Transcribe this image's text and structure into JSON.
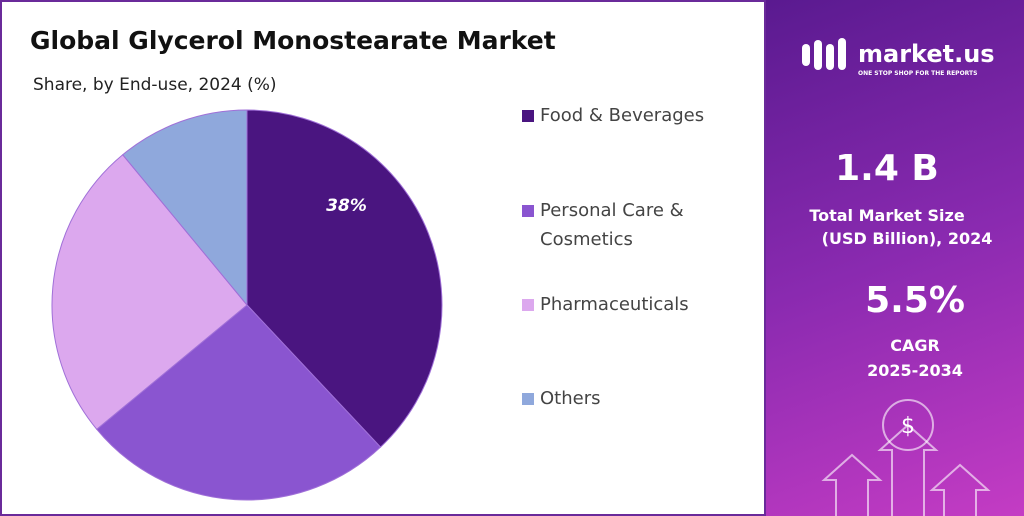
{
  "chart_data": {
    "type": "pie",
    "title": "Global Glycerol Monostearate Market",
    "subtitle": "Share, by End-use, 2024 (%)",
    "categories": [
      "Food & Beverages",
      "Personal Care & Cosmetics",
      "Pharmaceuticals",
      "Others"
    ],
    "values": [
      38,
      26,
      25,
      11
    ],
    "value_labels": [
      "38%",
      null,
      null,
      null
    ],
    "colors": [
      "#4a1580",
      "#8a55d0",
      "#dca8ee",
      "#8fa8dc"
    ]
  },
  "panel": {
    "brand": "market.us",
    "tagline": "ONE STOP SHOP FOR THE REPORTS",
    "market_size": "1.4 B",
    "market_size_label_1": "Total Market Size",
    "market_size_label_2": "(USD Billion), 2024",
    "cagr": "5.5%",
    "cagr_label": "CAGR",
    "cagr_period": "2025-2034"
  }
}
